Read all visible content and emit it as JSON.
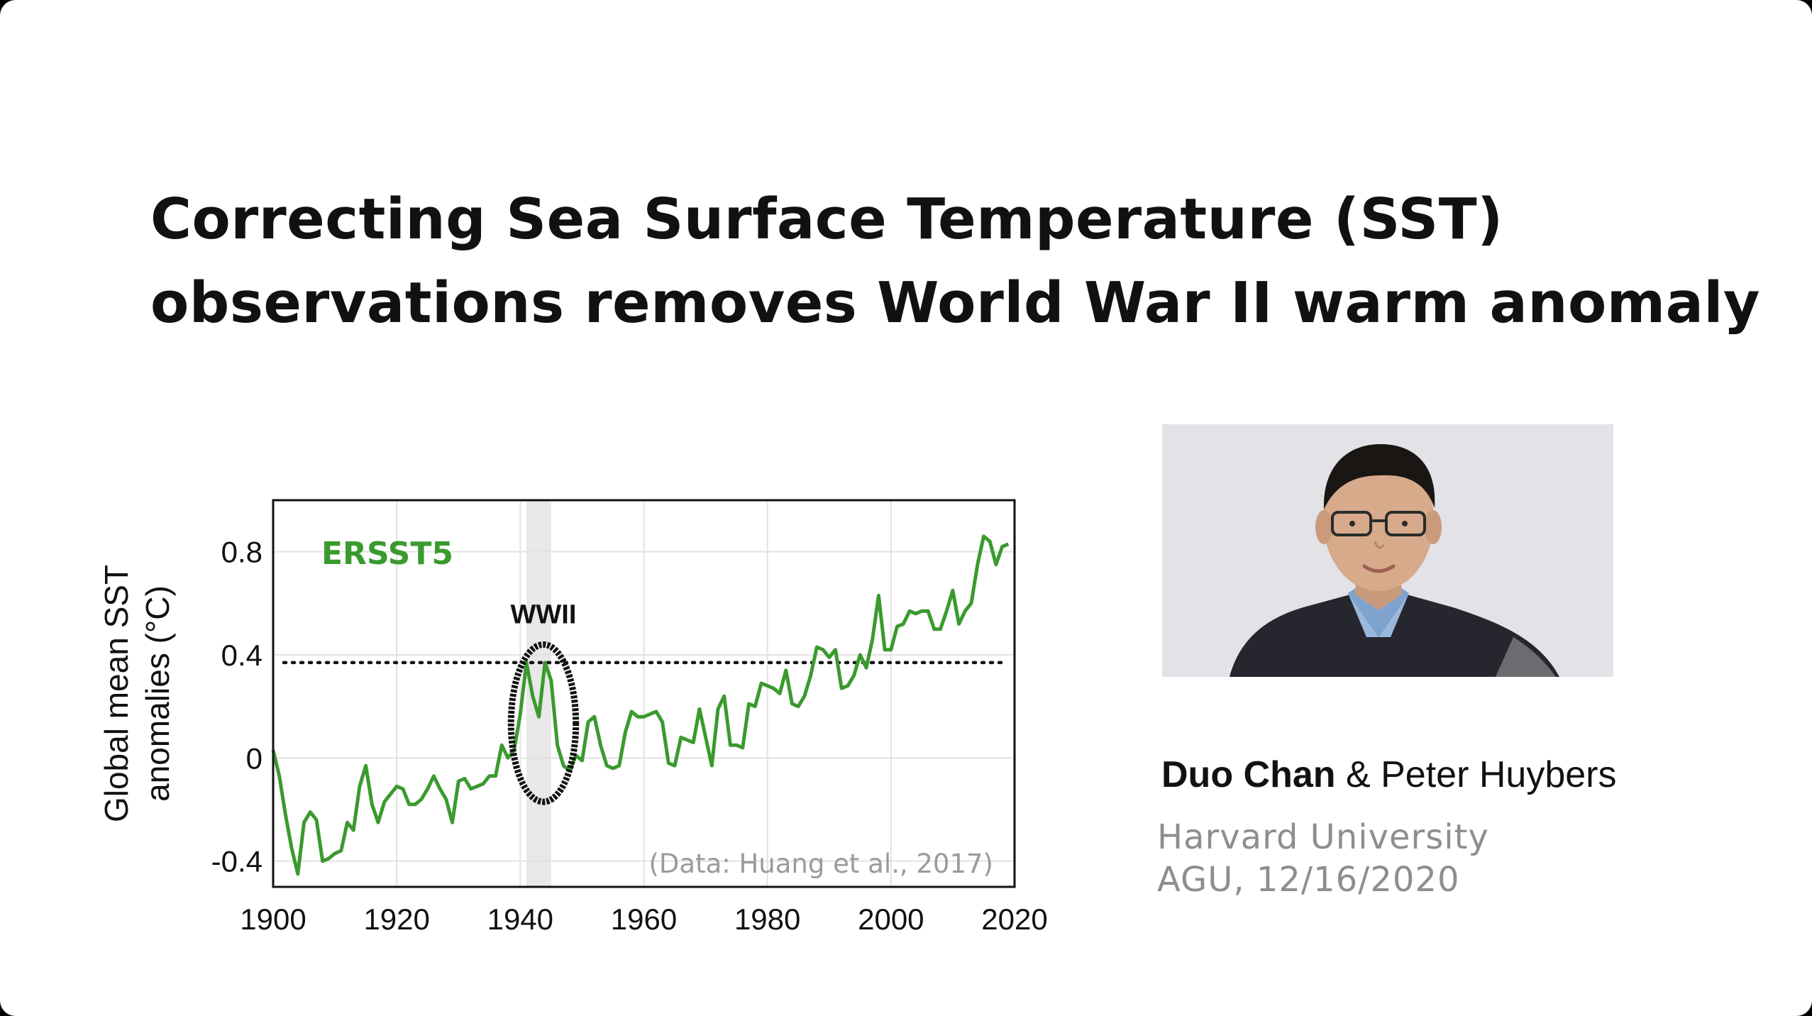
{
  "title": {
    "line1": "Correcting Sea Surface Temperature (SST)",
    "line2": "observations removes World War II warm anomaly"
  },
  "chart_data": {
    "type": "line",
    "series": [
      {
        "name": "ERSST5",
        "color": "#3a9a2e",
        "x": [
          1900,
          1901,
          1902,
          1903,
          1904,
          1905,
          1906,
          1907,
          1908,
          1909,
          1910,
          1911,
          1912,
          1913,
          1914,
          1915,
          1916,
          1917,
          1918,
          1919,
          1920,
          1921,
          1922,
          1923,
          1924,
          1925,
          1926,
          1927,
          1928,
          1929,
          1930,
          1931,
          1932,
          1933,
          1934,
          1935,
          1936,
          1937,
          1938,
          1939,
          1940,
          1941,
          1942,
          1943,
          1944,
          1945,
          1946,
          1947,
          1948,
          1949,
          1950,
          1951,
          1952,
          1953,
          1954,
          1955,
          1956,
          1957,
          1958,
          1959,
          1960,
          1961,
          1962,
          1963,
          1964,
          1965,
          1966,
          1967,
          1968,
          1969,
          1970,
          1971,
          1972,
          1973,
          1974,
          1975,
          1976,
          1977,
          1978,
          1979,
          1980,
          1981,
          1982,
          1983,
          1984,
          1985,
          1986,
          1987,
          1988,
          1989,
          1990,
          1991,
          1992,
          1993,
          1994,
          1995,
          1996,
          1997,
          1998,
          1999,
          2000,
          2001,
          2002,
          2003,
          2004,
          2005,
          2006,
          2007,
          2008,
          2009,
          2010,
          2011,
          2012,
          2013,
          2014,
          2015,
          2016,
          2017,
          2018,
          2019
        ],
        "y": [
          0.03,
          -0.07,
          -0.22,
          -0.35,
          -0.45,
          -0.25,
          -0.21,
          -0.24,
          -0.4,
          -0.39,
          -0.37,
          -0.36,
          -0.25,
          -0.28,
          -0.11,
          -0.03,
          -0.18,
          -0.25,
          -0.17,
          -0.14,
          -0.11,
          -0.12,
          -0.18,
          -0.18,
          -0.16,
          -0.12,
          -0.07,
          -0.12,
          -0.16,
          -0.25,
          -0.09,
          -0.08,
          -0.12,
          -0.11,
          -0.1,
          -0.07,
          -0.07,
          0.05,
          0.0,
          0.03,
          0.17,
          0.37,
          0.24,
          0.16,
          0.37,
          0.3,
          0.05,
          -0.03,
          -0.05,
          0.01,
          -0.01,
          0.14,
          0.16,
          0.05,
          -0.03,
          -0.04,
          -0.03,
          0.1,
          0.18,
          0.16,
          0.16,
          0.17,
          0.18,
          0.14,
          -0.02,
          -0.03,
          0.08,
          0.07,
          0.06,
          0.19,
          0.08,
          -0.03,
          0.19,
          0.24,
          0.05,
          0.05,
          0.04,
          0.21,
          0.2,
          0.29,
          0.28,
          0.27,
          0.25,
          0.34,
          0.21,
          0.2,
          0.24,
          0.32,
          0.43,
          0.42,
          0.39,
          0.42,
          0.27,
          0.28,
          0.32,
          0.4,
          0.35,
          0.46,
          0.63,
          0.42,
          0.42,
          0.51,
          0.52,
          0.57,
          0.56,
          0.57,
          0.57,
          0.5,
          0.5,
          0.57,
          0.65,
          0.52,
          0.57,
          0.6,
          0.75,
          0.86,
          0.84,
          0.75,
          0.82,
          0.83
        ]
      }
    ],
    "xlim": [
      1900,
      2020
    ],
    "ylim": [
      -0.5,
      1.0
    ],
    "xticks": [
      "1900",
      "1920",
      "1940",
      "1960",
      "1980",
      "2000",
      "2020"
    ],
    "yticks": [
      "-0.4",
      "0",
      "0.4",
      "0.8"
    ],
    "ylabel_line1": "Global mean SST",
    "ylabel_line2": "anomalies (°C)",
    "series_label": "ERSST5",
    "reference_line_y": 0.37,
    "shaded_band": [
      1941,
      1945
    ],
    "annotation": "WWII",
    "source": "(Data: Huang et al., 2017)",
    "grid": true,
    "colors": {
      "series": "#3a9a2e",
      "band": "#e8e8e8",
      "grid": "#e2e2e2"
    }
  },
  "presenter": {
    "name_bold": "Duo Chan",
    "name_rest": " & Peter Huybers",
    "affiliation": "Harvard University",
    "event": "AGU, 12/16/2020"
  }
}
